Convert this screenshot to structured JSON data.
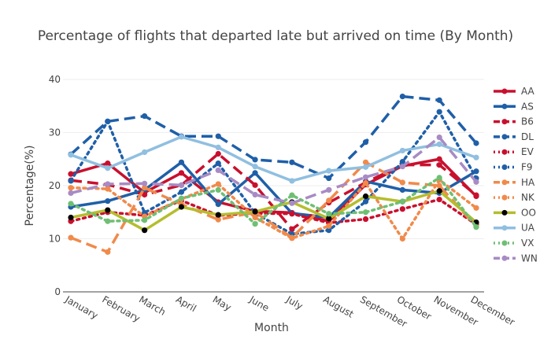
{
  "chart_data": {
    "type": "line",
    "title": "Percentage of flights that departed late but arrived on time (By Month)",
    "xlabel": "Month",
    "ylabel": "Percentage(%)",
    "ylim": [
      0,
      40
    ],
    "yticks": [
      "0",
      "10",
      "20",
      "30",
      "40"
    ],
    "grid": true,
    "legend_position": "right",
    "categories": [
      "January",
      "February",
      "March",
      "April",
      "May",
      "June",
      "July",
      "August",
      "September",
      "October",
      "November",
      "December"
    ],
    "series": [
      {
        "name": "AA",
        "color": "#c8102e",
        "dash": "solid",
        "width": "thick",
        "values": [
          22.2,
          24.2,
          18.7,
          22.4,
          16.9,
          15.2,
          14.9,
          13.3,
          20.2,
          23.7,
          25.0,
          18.0
        ]
      },
      {
        "name": "AS",
        "color": "#1f5fa8",
        "dash": "solid",
        "width": "thick",
        "values": [
          16.0,
          17.1,
          19.2,
          24.4,
          16.5,
          22.4,
          14.8,
          14.0,
          20.8,
          19.2,
          18.6,
          22.7
        ]
      },
      {
        "name": "B6",
        "color": "#c8102e",
        "dash": "dash",
        "width": "thick",
        "values": [
          21.0,
          20.2,
          18.3,
          20.1,
          26.0,
          20.1,
          11.8,
          16.8,
          20.6,
          23.9,
          23.9,
          18.2
        ]
      },
      {
        "name": "DL",
        "color": "#1f5fa8",
        "dash": "dash",
        "width": "thick",
        "values": [
          25.9,
          32.1,
          33.1,
          29.3,
          29.3,
          24.9,
          24.4,
          21.4,
          28.2,
          36.8,
          36.1,
          28.0
        ]
      },
      {
        "name": "EV",
        "color": "#c8102e",
        "dash": "dot",
        "width": "thick",
        "values": [
          13.3,
          15.0,
          14.4,
          17.2,
          14.4,
          14.8,
          14.7,
          13.0,
          13.7,
          15.6,
          17.4,
          12.7
        ]
      },
      {
        "name": "F9",
        "color": "#1f5fa8",
        "dash": "dot",
        "width": "thick",
        "values": [
          20.9,
          32.1,
          14.9,
          18.8,
          24.2,
          14.8,
          10.9,
          11.6,
          17.0,
          24.5,
          33.9,
          21.4
        ]
      },
      {
        "name": "HA",
        "color": "#f08a4b",
        "dash": "dash",
        "width": "thick",
        "values": [
          10.2,
          7.5,
          19.6,
          16.5,
          13.6,
          15.0,
          10.2,
          17.2,
          24.4,
          20.6,
          20.0,
          12.3
        ]
      },
      {
        "name": "NK",
        "color": "#f08a4b",
        "dash": "dot",
        "width": "thick",
        "values": [
          19.6,
          19.4,
          14.2,
          17.5,
          20.3,
          14.0,
          10.1,
          12.4,
          20.5,
          10.0,
          21.1,
          15.8
        ]
      },
      {
        "name": "OO",
        "color": "#b5bd2e",
        "dash": "solid",
        "width": "thick",
        "values": [
          14.0,
          15.4,
          11.6,
          16.0,
          14.5,
          15.1,
          16.9,
          13.8,
          18.0,
          17.0,
          19.0,
          13.1
        ]
      },
      {
        "name": "UA",
        "color": "#90bfe0",
        "dash": "solid",
        "width": "thick",
        "values": [
          25.8,
          23.3,
          26.3,
          29.2,
          27.2,
          23.6,
          20.9,
          22.8,
          23.5,
          26.6,
          27.8,
          25.3
        ]
      },
      {
        "name": "VX",
        "color": "#6fbf73",
        "dash": "dot",
        "width": "thick",
        "values": [
          16.6,
          13.3,
          13.5,
          17.6,
          19.2,
          12.8,
          18.2,
          14.7,
          15.0,
          17.0,
          21.5,
          12.2
        ]
      },
      {
        "name": "WN",
        "color": "#a88bc4",
        "dash": "dash",
        "width": "thick",
        "values": [
          18.6,
          20.3,
          20.4,
          20.1,
          22.9,
          18.3,
          16.7,
          19.2,
          21.6,
          23.6,
          29.1,
          20.7
        ]
      }
    ]
  }
}
